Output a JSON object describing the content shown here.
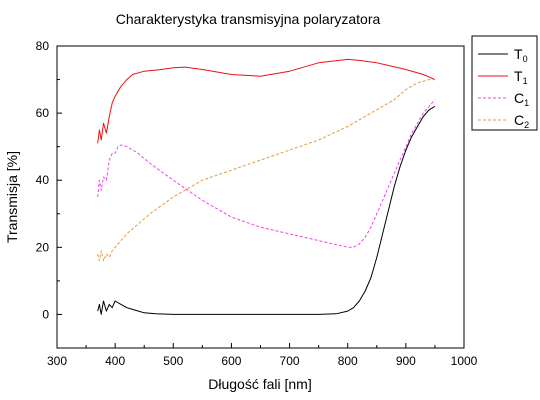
{
  "chart_data": {
    "type": "line",
    "title": "Charakterystyka transmisyjna polaryzatora",
    "xlabel": "Długość fali [nm]",
    "ylabel": "Transmisja [%]",
    "xlim": [
      300,
      1000
    ],
    "ylim": [
      -10,
      80
    ],
    "x_ticks": [
      "300",
      "400",
      "500",
      "600",
      "700",
      "800",
      "900",
      "1000"
    ],
    "y_ticks": [
      "0",
      "20",
      "40",
      "60",
      "80"
    ],
    "grid": false,
    "legend_position": "top-right-outside",
    "series": [
      {
        "name": "T0",
        "base": "T",
        "sub": "0",
        "color": "#000000",
        "dash": "solid",
        "x": [
          370,
          373,
          376,
          380,
          385,
          390,
          395,
          400,
          410,
          420,
          430,
          440,
          450,
          470,
          500,
          550,
          600,
          650,
          700,
          750,
          780,
          800,
          810,
          820,
          830,
          840,
          850,
          860,
          870,
          880,
          890,
          900,
          910,
          920,
          930,
          940,
          950
        ],
        "y": [
          1,
          3,
          0,
          4,
          1,
          3,
          2,
          4,
          3,
          2,
          1.5,
          1,
          0.5,
          0.2,
          0,
          0,
          0,
          0,
          0,
          0,
          0.2,
          1,
          2,
          4,
          7,
          11,
          17,
          24,
          31,
          38,
          44,
          49,
          53,
          56,
          59,
          61,
          62
        ]
      },
      {
        "name": "T1",
        "base": "T",
        "sub": "1",
        "color": "#ee1111",
        "dash": "solid",
        "x": [
          370,
          373,
          376,
          380,
          385,
          390,
          395,
          400,
          410,
          420,
          430,
          450,
          480,
          500,
          520,
          550,
          600,
          650,
          700,
          750,
          800,
          820,
          850,
          900,
          930,
          950
        ],
        "y": [
          51,
          55,
          52,
          57,
          54,
          59,
          63,
          65,
          68,
          70,
          71.5,
          72.5,
          73,
          73.5,
          73.7,
          73,
          71.5,
          71,
          72.5,
          75,
          76,
          75.7,
          75,
          73,
          71.5,
          70
        ]
      },
      {
        "name": "C1",
        "base": "C",
        "sub": "1",
        "color": "#ee44ee",
        "dash": "3,2",
        "x": [
          370,
          373,
          376,
          380,
          385,
          390,
          395,
          400,
          405,
          410,
          420,
          440,
          460,
          500,
          550,
          600,
          650,
          700,
          750,
          800,
          810,
          820,
          830,
          840,
          850,
          860,
          870,
          880,
          890,
          900,
          910,
          920,
          930,
          940,
          950
        ],
        "y": [
          35,
          40,
          37,
          41,
          40,
          46,
          48,
          48,
          50,
          50.5,
          50,
          48,
          45,
          40,
          34,
          29,
          26,
          24,
          22,
          20,
          20,
          21,
          23,
          26,
          30,
          34,
          38,
          42,
          46,
          50,
          54,
          57,
          60,
          62,
          64
        ]
      },
      {
        "name": "C2",
        "base": "C",
        "sub": "2",
        "color": "#e09a40",
        "dash": "3,2",
        "x": [
          370,
          373,
          376,
          380,
          385,
          390,
          395,
          400,
          410,
          420,
          440,
          460,
          500,
          550,
          600,
          650,
          700,
          750,
          800,
          820,
          850,
          880,
          900,
          920,
          940,
          950
        ],
        "y": [
          18,
          16,
          19,
          16,
          18,
          17,
          19,
          20,
          22,
          24,
          27,
          30,
          35,
          40,
          43,
          46,
          49,
          52,
          56,
          58,
          61,
          64,
          67,
          69,
          70,
          70
        ]
      }
    ]
  }
}
